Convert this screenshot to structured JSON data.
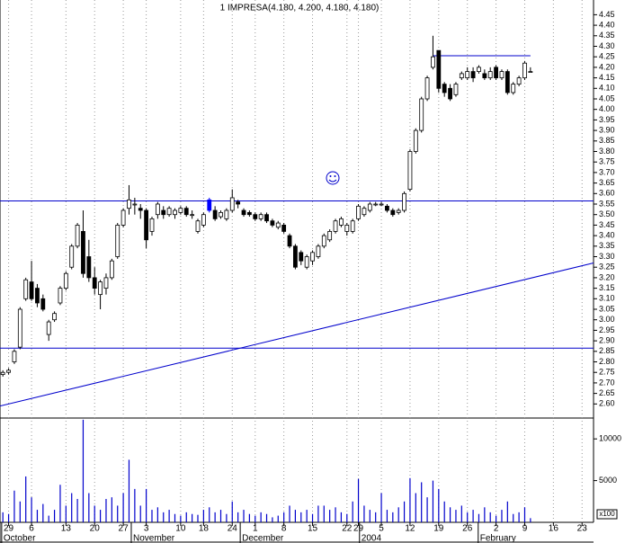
{
  "chart_data": {
    "type": "candlestick",
    "title": "1 IMPRESA(4.180, 4.200, 4.180, 4.180)",
    "xlim": [
      -0.5,
      103
    ],
    "xticks": [
      {
        "value": 1,
        "label": "29"
      },
      {
        "value": 5,
        "label": "6"
      },
      {
        "value": 11,
        "label": "13"
      },
      {
        "value": 16,
        "label": "20"
      },
      {
        "value": 21,
        "label": "27"
      },
      {
        "value": 25,
        "label": "3"
      },
      {
        "value": 31,
        "label": "10"
      },
      {
        "value": 35,
        "label": "18"
      },
      {
        "value": 40,
        "label": "24"
      },
      {
        "value": 44,
        "label": "1"
      },
      {
        "value": 49,
        "label": "8"
      },
      {
        "value": 54,
        "label": "15"
      },
      {
        "value": 60,
        "label": "22"
      },
      {
        "value": 62,
        "label": "29"
      },
      {
        "value": 66,
        "label": "5"
      },
      {
        "value": 71,
        "label": "12"
      },
      {
        "value": 76,
        "label": "19"
      },
      {
        "value": 81,
        "label": "26"
      },
      {
        "value": 86,
        "label": "2"
      },
      {
        "value": 91,
        "label": "9"
      },
      {
        "value": 96,
        "label": "16"
      },
      {
        "value": 101,
        "label": "23"
      }
    ],
    "months": [
      {
        "value": 2.3,
        "label": "October"
      },
      {
        "value": 24.9,
        "label": "November"
      },
      {
        "value": 43.9,
        "label": "December"
      },
      {
        "value": 64.7,
        "label": "2004"
      },
      {
        "value": 85.4,
        "label": "February"
      }
    ],
    "ylim": [
      2.533,
      4.52
    ],
    "yticks": [
      4.45,
      {
        "value": 4.4,
        "label": "4.40"
      },
      4.35,
      {
        "value": 4.3,
        "label": "4.30"
      },
      4.25,
      {
        "value": 4.2,
        "label": "4.20"
      },
      4.15,
      {
        "value": 4.1,
        "label": "4.10"
      },
      4.05,
      {
        "value": 4.0,
        "label": "4.00"
      },
      3.95,
      {
        "value": 3.9,
        "label": "3.90"
      },
      3.85,
      {
        "value": 3.8,
        "label": "3.80"
      },
      3.75,
      {
        "value": 3.7,
        "label": "3.70"
      },
      3.65,
      {
        "value": 3.6,
        "label": "3.60"
      },
      3.55,
      {
        "value": 3.5,
        "label": "3.50"
      },
      3.45,
      {
        "value": 3.4,
        "label": "3.40"
      },
      3.35,
      {
        "value": 3.3,
        "label": "3.30"
      },
      3.25,
      {
        "value": 3.2,
        "label": "3.20"
      },
      3.15,
      {
        "value": 3.1,
        "label": "3.10"
      },
      3.05,
      {
        "value": 3.0,
        "label": "3.00"
      },
      2.95,
      {
        "value": 2.9,
        "label": "2.90"
      },
      2.85,
      {
        "value": 2.8,
        "label": "2.80"
      },
      2.75,
      {
        "value": 2.7,
        "label": "2.70"
      },
      2.65,
      {
        "value": 2.6,
        "label": "2.60"
      }
    ],
    "open": [
      2.74,
      2.75,
      2.8,
      2.87,
      3.1,
      3.18,
      3.15,
      3.1,
      2.93,
      3.0,
      3.08,
      3.15,
      3.25,
      3.35,
      3.42,
      3.3,
      3.2,
      3.12,
      3.15,
      3.2,
      3.3,
      3.45,
      3.53,
      3.55,
      3.53,
      3.52,
      3.42,
      3.5,
      3.52,
      3.5,
      3.5,
      3.51,
      3.53,
      3.5,
      3.42,
      3.45,
      3.57,
      3.52,
      3.49,
      3.48,
      3.52,
      3.56,
      3.52,
      3.51,
      3.5,
      3.48,
      3.5,
      3.47,
      3.44,
      3.45,
      3.4,
      3.35,
      3.32,
      3.25,
      3.28,
      3.3,
      3.35,
      3.38,
      3.42,
      3.45,
      3.42,
      3.42,
      3.48,
      3.5,
      3.52,
      3.55,
      3.55,
      3.54,
      3.52,
      3.51,
      3.52,
      3.62,
      3.8,
      3.9,
      4.05,
      4.2,
      4.28,
      4.12,
      4.1,
      4.07,
      4.15,
      4.15,
      4.18,
      4.18,
      4.17,
      4.15,
      4.2,
      4.15,
      4.18,
      4.08,
      4.12,
      4.15,
      4.18
    ],
    "high": [
      2.76,
      2.77,
      2.86,
      3.06,
      3.2,
      3.28,
      3.17,
      3.12,
      3.0,
      3.04,
      3.16,
      3.23,
      3.36,
      3.46,
      3.52,
      3.38,
      3.25,
      3.19,
      3.22,
      3.29,
      3.46,
      3.53,
      3.64,
      3.58,
      3.55,
      3.53,
      3.49,
      3.56,
      3.54,
      3.54,
      3.53,
      3.54,
      3.54,
      3.52,
      3.48,
      3.51,
      3.58,
      3.54,
      3.52,
      3.53,
      3.62,
      3.57,
      3.53,
      3.52,
      3.51,
      3.51,
      3.51,
      3.48,
      3.47,
      3.46,
      3.41,
      3.36,
      3.33,
      3.31,
      3.33,
      3.36,
      3.41,
      3.43,
      3.48,
      3.49,
      3.46,
      3.48,
      3.55,
      3.54,
      3.56,
      3.56,
      3.56,
      3.55,
      3.53,
      3.53,
      3.61,
      3.81,
      3.91,
      4.06,
      4.16,
      4.35,
      4.28,
      4.13,
      4.12,
      4.13,
      4.18,
      4.2,
      4.2,
      4.21,
      4.19,
      4.2,
      4.21,
      4.19,
      4.19,
      4.13,
      4.16,
      4.23,
      4.2
    ],
    "low": [
      2.73,
      2.74,
      2.79,
      2.86,
      3.09,
      3.09,
      3.06,
      3.04,
      2.9,
      2.99,
      3.07,
      3.14,
      3.24,
      3.34,
      3.2,
      3.18,
      3.12,
      3.05,
      3.12,
      3.19,
      3.29,
      3.44,
      3.5,
      3.5,
      3.48,
      3.34,
      3.4,
      3.48,
      3.48,
      3.49,
      3.48,
      3.5,
      3.49,
      3.48,
      3.41,
      3.44,
      3.51,
      3.47,
      3.48,
      3.47,
      3.51,
      3.53,
      3.49,
      3.49,
      3.47,
      3.47,
      3.46,
      3.44,
      3.43,
      3.41,
      3.34,
      3.24,
      3.26,
      3.24,
      3.26,
      3.29,
      3.34,
      3.37,
      3.41,
      3.44,
      3.4,
      3.41,
      3.47,
      3.49,
      3.51,
      3.54,
      3.54,
      3.51,
      3.49,
      3.5,
      3.51,
      3.61,
      3.79,
      3.89,
      4.04,
      4.19,
      4.08,
      4.06,
      4.04,
      4.06,
      4.14,
      4.14,
      4.13,
      4.17,
      4.14,
      4.14,
      4.14,
      4.14,
      4.07,
      4.07,
      4.11,
      4.14,
      4.18
    ],
    "close": [
      2.75,
      2.76,
      2.85,
      3.05,
      3.19,
      3.1,
      3.08,
      3.05,
      2.99,
      3.03,
      3.15,
      3.22,
      3.35,
      3.45,
      3.22,
      3.2,
      3.15,
      3.18,
      3.2,
      3.28,
      3.45,
      3.52,
      3.57,
      3.55,
      3.52,
      3.38,
      3.48,
      3.55,
      3.5,
      3.53,
      3.52,
      3.53,
      3.5,
      3.5,
      3.47,
      3.5,
      3.52,
      3.48,
      3.51,
      3.52,
      3.58,
      3.55,
      3.5,
      3.5,
      3.48,
      3.5,
      3.47,
      3.45,
      3.46,
      3.42,
      3.35,
      3.25,
      3.28,
      3.3,
      3.32,
      3.35,
      3.4,
      3.42,
      3.47,
      3.48,
      3.45,
      3.47,
      3.54,
      3.53,
      3.55,
      3.55,
      3.55,
      3.52,
      3.5,
      3.52,
      3.6,
      3.8,
      3.9,
      4.05,
      4.15,
      4.25,
      4.1,
      4.08,
      4.05,
      4.12,
      4.17,
      4.18,
      4.15,
      4.2,
      4.15,
      4.18,
      4.15,
      4.18,
      4.08,
      4.12,
      4.15,
      4.22,
      4.18
    ],
    "volume": [
      1200,
      1000,
      3800,
      2500,
      5500,
      3000,
      1500,
      2200,
      800,
      1500,
      4500,
      2000,
      3500,
      2800,
      12300,
      3500,
      2000,
      1500,
      2800,
      3000,
      2000,
      3500,
      7500,
      4000,
      2000,
      4000,
      1500,
      1800,
      1200,
      1500,
      1000,
      800,
      1200,
      1000,
      900,
      1500,
      1800,
      1200,
      1500,
      1000,
      2500,
      1200,
      1500,
      1000,
      800,
      1200,
      1000,
      600,
      800,
      1200,
      2000,
      1500,
      1200,
      1500,
      1000,
      2000,
      2000,
      1500,
      1800,
      1200,
      1000,
      2500,
      5200,
      2000,
      1500,
      1200,
      3500,
      1500,
      1200,
      1800,
      2500,
      5300,
      3500,
      4800,
      3000,
      5000,
      4000,
      2500,
      1800,
      1500,
      2000,
      1200,
      1500,
      1000,
      1800,
      1200,
      800,
      1500,
      2500,
      1000,
      1200,
      1800,
      500
    ],
    "vlim": [
      0,
      12500
    ],
    "vticks": [
      10000,
      5000
    ],
    "volume_unit": "x100",
    "up_color": "#ffffff",
    "down_color": "#000000",
    "highlight_index": 36,
    "highlight_color": "#0000ff",
    "line_color": "#0000cc",
    "volume_color": "#0000cc",
    "grid": true,
    "lines": [
      {
        "x": [
          -0.5,
          103
        ],
        "y": [
          3.565,
          3.565
        ]
      },
      {
        "x": [
          -0.5,
          103
        ],
        "y": [
          2.865,
          2.865
        ]
      },
      {
        "x": [
          -0.5,
          103
        ],
        "y": [
          2.59,
          3.27
        ]
      },
      {
        "x": [
          75,
          92
        ],
        "y": [
          4.255,
          4.255
        ]
      }
    ]
  }
}
